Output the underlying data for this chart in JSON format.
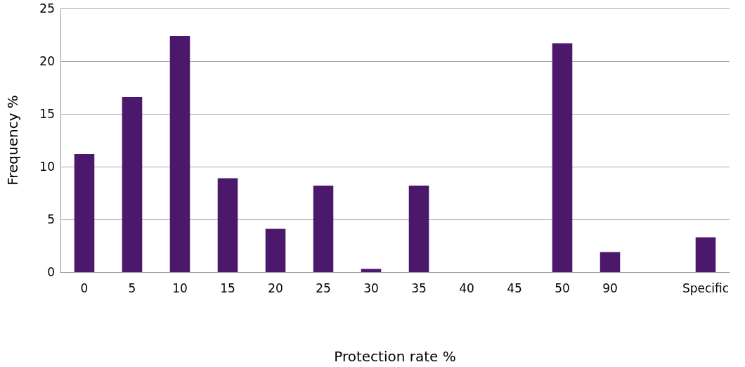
{
  "chart_data": {
    "type": "bar",
    "xlabel": "Protection rate %",
    "ylabel": "Frequency %",
    "categories": [
      "0",
      "5",
      "10",
      "15",
      "20",
      "25",
      "30",
      "35",
      "40",
      "45",
      "50",
      "90",
      null,
      "Specific"
    ],
    "values": [
      11.2,
      16.6,
      22.4,
      8.9,
      4.1,
      8.2,
      0.3,
      8.2,
      0,
      0,
      21.7,
      1.9,
      null,
      3.3
    ],
    "color": "#4b186c",
    "ylim": [
      0,
      25
    ],
    "yticks": [
      0,
      5,
      10,
      15,
      20,
      25
    ],
    "grid": "y"
  }
}
